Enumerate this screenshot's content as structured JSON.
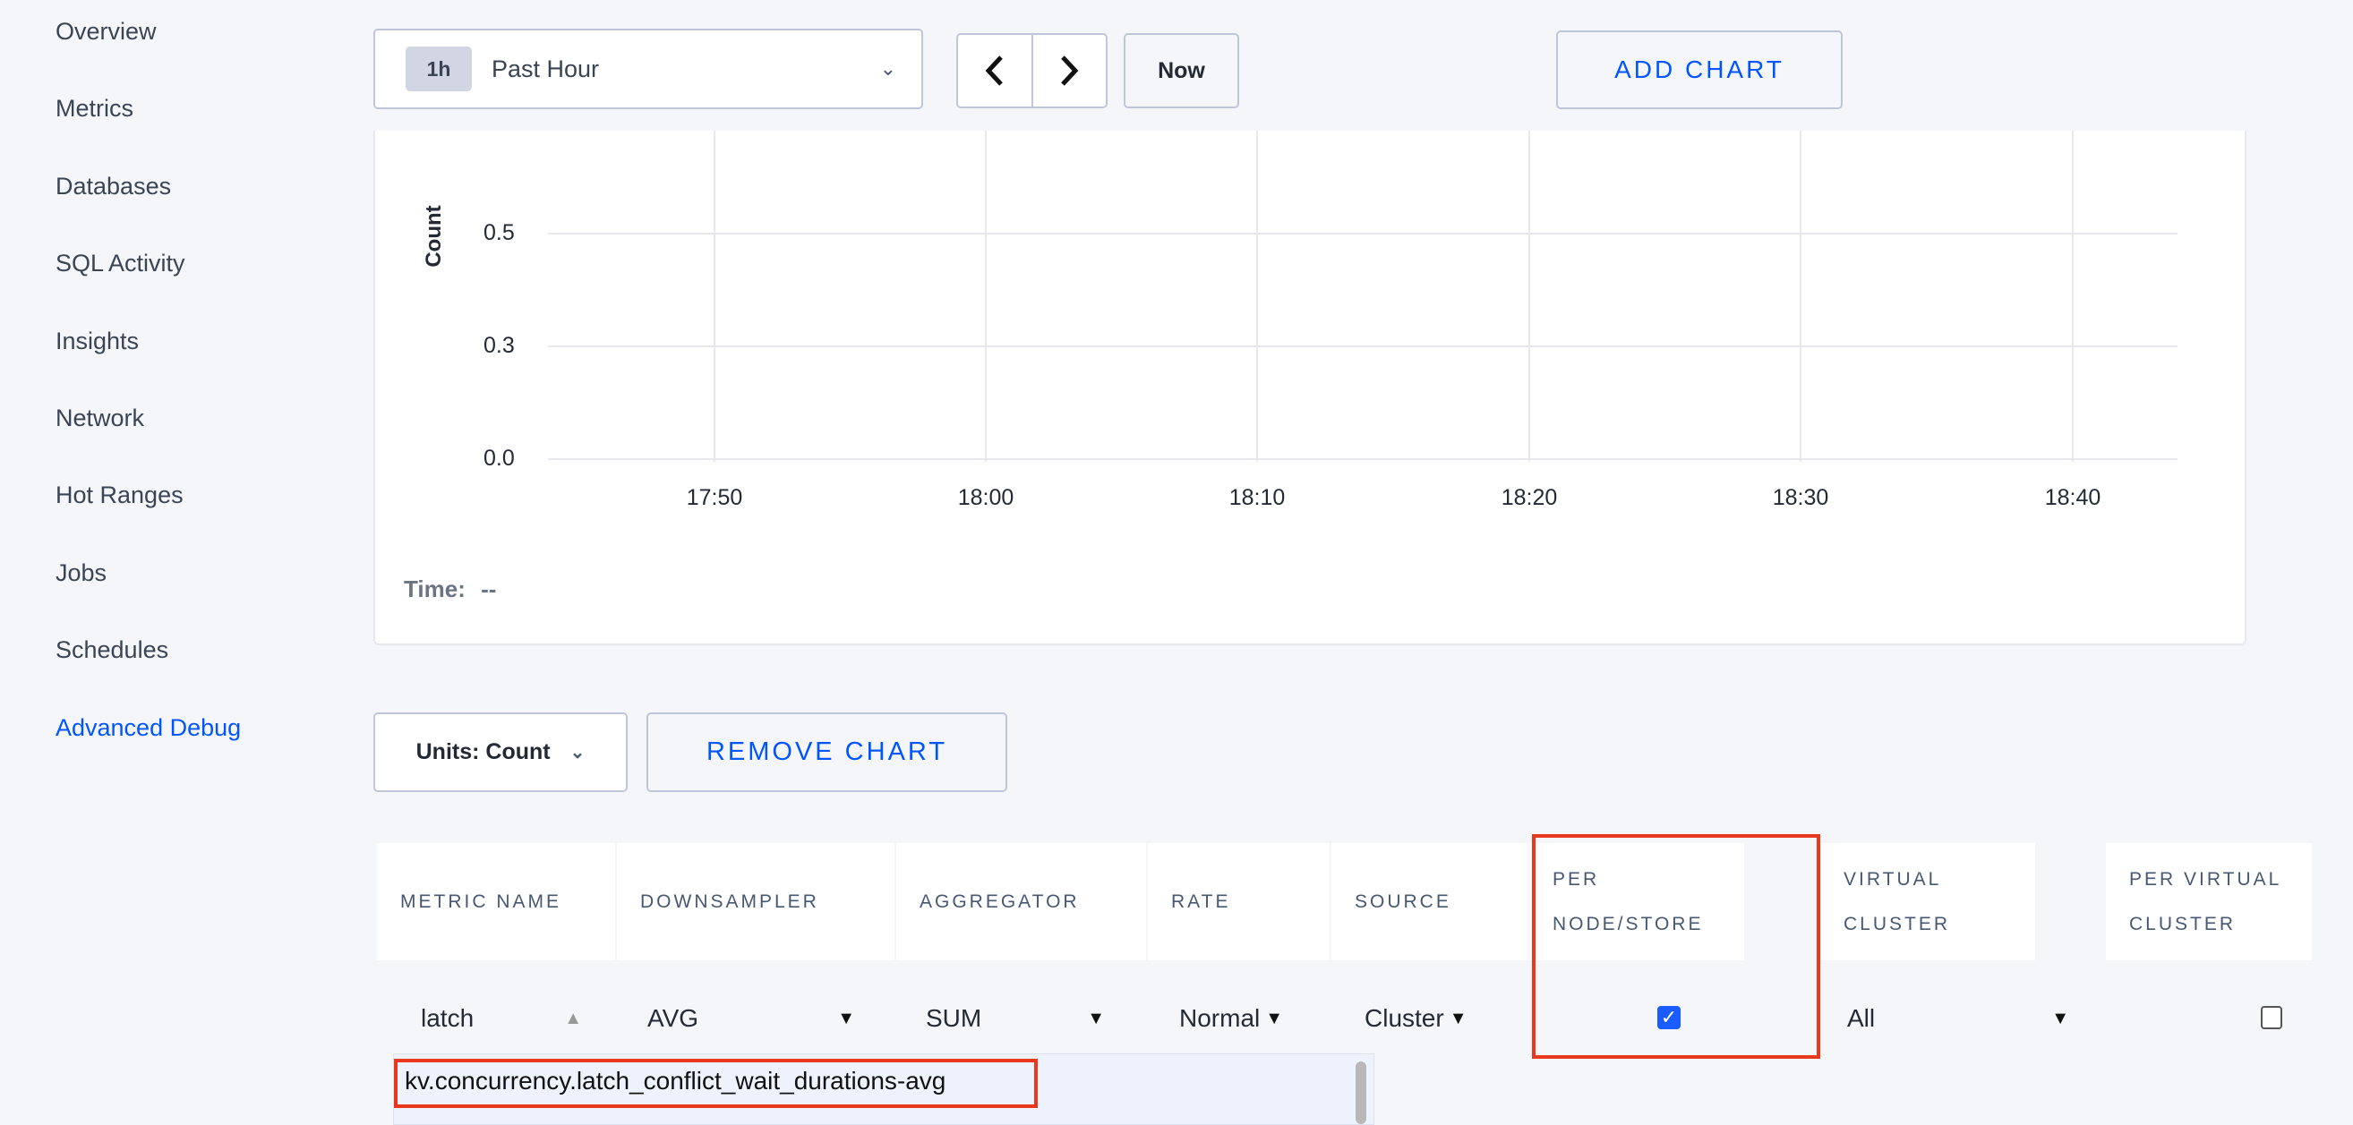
{
  "sidebar": {
    "items": [
      {
        "label": "Overview"
      },
      {
        "label": "Metrics"
      },
      {
        "label": "Databases"
      },
      {
        "label": "SQL Activity"
      },
      {
        "label": "Insights"
      },
      {
        "label": "Network"
      },
      {
        "label": "Hot Ranges"
      },
      {
        "label": "Jobs"
      },
      {
        "label": "Schedules"
      },
      {
        "label": "Advanced Debug",
        "active": true
      }
    ]
  },
  "toolbar": {
    "time_badge": "1h",
    "time_label": "Past Hour",
    "prev_icon": "chevron-left",
    "next_icon": "chevron-right",
    "now_label": "Now",
    "add_chart_label": "ADD CHART"
  },
  "chart": {
    "ylabel": "Count",
    "yticks": [
      "0.5",
      "0.3",
      "0.0"
    ],
    "xticks": [
      "17:50",
      "18:00",
      "18:10",
      "18:20",
      "18:30",
      "18:40"
    ],
    "time_label": "Time:",
    "time_value": "--"
  },
  "controls": {
    "units_label": "Units: Count",
    "remove_chart_label": "REMOVE CHART"
  },
  "table": {
    "headers": [
      "METRIC NAME",
      "DOWNSAMPLER",
      "AGGREGATOR",
      "RATE",
      "SOURCE",
      "PER NODE/STORE",
      "VIRTUAL CLUSTER",
      "PER VIRTUAL CLUSTER"
    ],
    "row": {
      "metric": "latch",
      "downsampler": "AVG",
      "aggregator": "SUM",
      "rate": "Normal",
      "source": "Cluster",
      "per_node": true,
      "virtual_cluster": "All",
      "per_virtual_cluster": false
    }
  },
  "autocomplete": {
    "options": [
      "kv.concurrency.latch_conflict_wait_durations-avg"
    ]
  },
  "colors": {
    "accent": "#0055ff",
    "highlight": "#e8391f"
  }
}
